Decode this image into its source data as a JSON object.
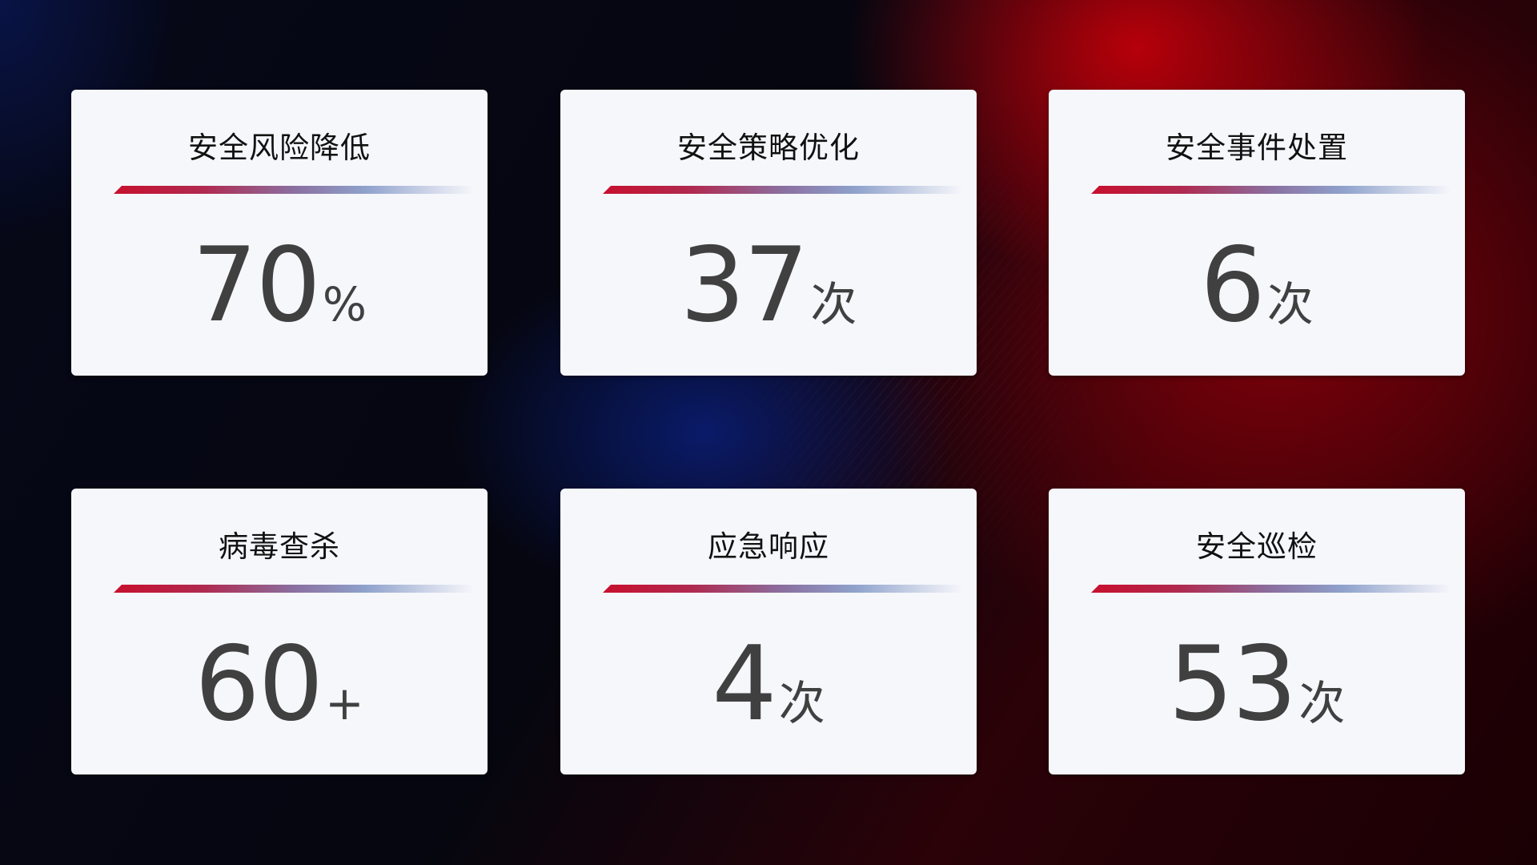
{
  "cards": [
    {
      "title": "安全风险降低",
      "value": "70",
      "unit": "%"
    },
    {
      "title": "安全策略优化",
      "value": "37",
      "unit": "次"
    },
    {
      "title": "安全事件处置",
      "value": "6",
      "unit": "次"
    },
    {
      "title": "病毒查杀",
      "value": "60",
      "unit": "+"
    },
    {
      "title": "应急响应",
      "value": "4",
      "unit": "次"
    },
    {
      "title": "安全巡检",
      "value": "53",
      "unit": "次"
    }
  ],
  "colors": {
    "accent_red": "#c8102e",
    "accent_blue": "#8fa2cc",
    "card_bg": "#f6f7fb",
    "value_text": "#404040"
  }
}
